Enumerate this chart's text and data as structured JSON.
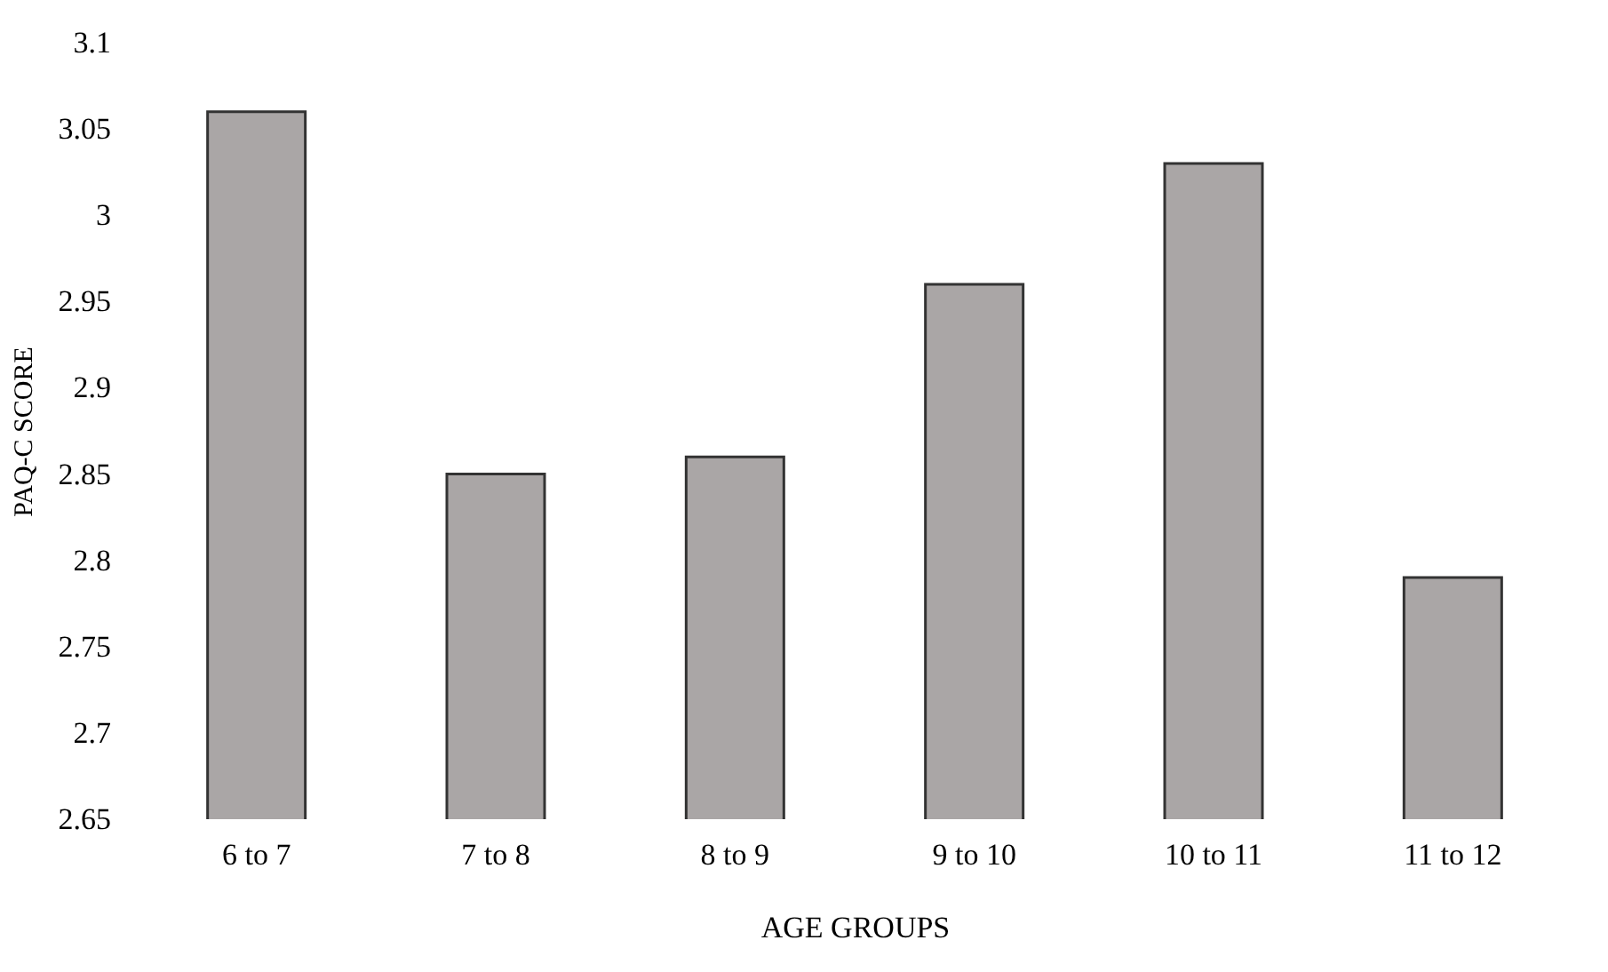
{
  "chart_data": {
    "type": "bar",
    "xlabel": "AGE GROUPS",
    "ylabel": "PAQ-C SCORE",
    "categories": [
      "6 to 7",
      "7 to 8",
      "8 to 9",
      "9 to 10",
      "10 to 11",
      "11 to 12"
    ],
    "values": [
      3.06,
      2.85,
      2.86,
      2.96,
      3.03,
      2.79
    ],
    "color": "#aaa6a6",
    "ylim": [
      2.65,
      3.1
    ],
    "yticks": [
      2.65,
      2.7,
      2.75,
      2.8,
      2.85,
      2.9,
      2.95,
      3,
      3.05,
      3.1
    ],
    "grid": false
  }
}
